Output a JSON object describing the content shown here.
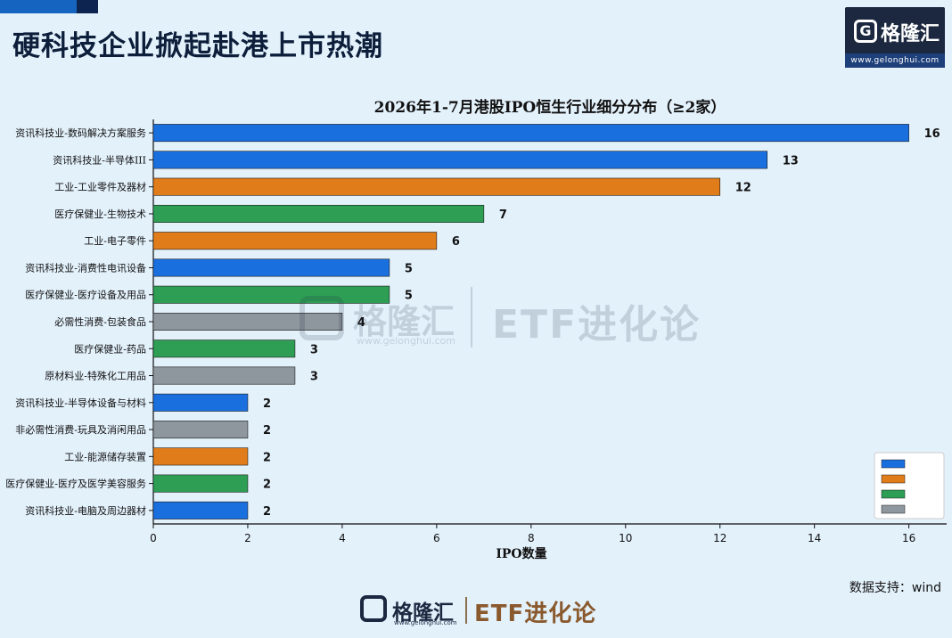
{
  "header": {
    "title": "硬科技企业掀起赴港上市热潮"
  },
  "logo": {
    "name": "格隆汇",
    "url": "www.gelonghui.com"
  },
  "watermark": {
    "name": "格隆汇",
    "url": "www.gelonghui.com",
    "etf": "ETF进化论"
  },
  "footer": {
    "name": "格隆汇",
    "url": "www.gelonghui.com",
    "etf": "ETF进化论"
  },
  "source_note": "数据支持：wind",
  "chart_data": {
    "type": "bar",
    "orientation": "horizontal",
    "title": "2026年1-7月港股IPO恒生行业细分分布（≥2家）",
    "xlabel": "IPO数量",
    "ylabel": "",
    "xlim": [
      0,
      16.8
    ],
    "xticks": [
      "0",
      "2",
      "4",
      "6",
      "8",
      "10",
      "12",
      "14",
      "16"
    ],
    "grid": false,
    "legend_position": "bottom-right",
    "categories": [
      "资讯科技业-数码解决方案服务",
      "资讯科技业-半导体III",
      "工业-工业零件及器材",
      "医疗保健业-生物技术",
      "工业-电子零件",
      "资讯科技业-消费性电讯设备",
      "医疗保健业-医疗设备及用品",
      "必需性消费-包装食品",
      "医疗保健业-药品",
      "原材料业-特殊化工用品",
      "资讯科技业-半导体设备与材料",
      "非必需性消费-玩具及消闲用品",
      "工业-能源储存装置",
      "医疗保健业-医疗及医学美容服务",
      "资讯科技业-电脑及周边器材"
    ],
    "values": [
      16,
      13,
      12,
      7,
      6,
      5,
      5,
      4,
      3,
      3,
      2,
      2,
      2,
      2,
      2
    ],
    "group_index": [
      0,
      0,
      1,
      2,
      1,
      0,
      2,
      3,
      2,
      3,
      0,
      3,
      1,
      2,
      0
    ],
    "groups": [
      {
        "color": "#1a6fdf"
      },
      {
        "color": "#e07c1a"
      },
      {
        "color": "#2e9e55"
      },
      {
        "color": "#8e979e"
      }
    ]
  }
}
